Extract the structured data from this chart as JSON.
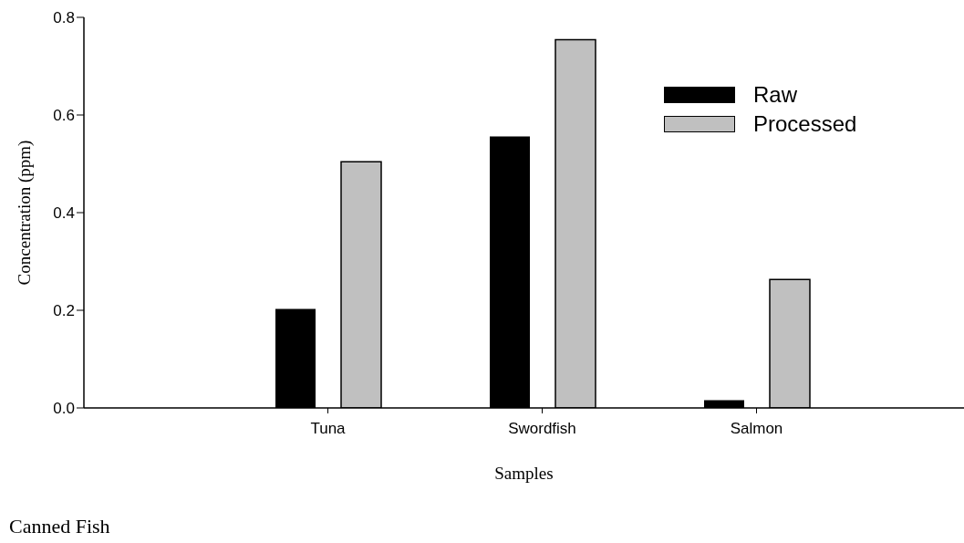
{
  "chart_data": {
    "type": "bar",
    "xlabel": "Samples",
    "ylabel": "Concentration (ppm)",
    "annotations": [
      "Canned Fish"
    ],
    "categories": [
      "Tuna",
      "Swordfish",
      "Salmon"
    ],
    "series": [
      {
        "name": "Raw",
        "color": "#000000",
        "values": [
          0.203,
          0.556,
          0.016
        ]
      },
      {
        "name": "Processed",
        "color": "#c0c0c0",
        "values": [
          0.504,
          0.754,
          0.263
        ]
      }
    ],
    "ylim": [
      0,
      0.8
    ],
    "yticks": [
      {
        "value": 0,
        "label": "0.0"
      },
      {
        "value": 0.2,
        "label": "0.2"
      },
      {
        "value": 0.4,
        "label": "0.4"
      },
      {
        "value": 0.6,
        "label": "0.6"
      },
      {
        "value": 0.8,
        "label": "0.8"
      }
    ],
    "grid": false,
    "legend": "top right"
  }
}
